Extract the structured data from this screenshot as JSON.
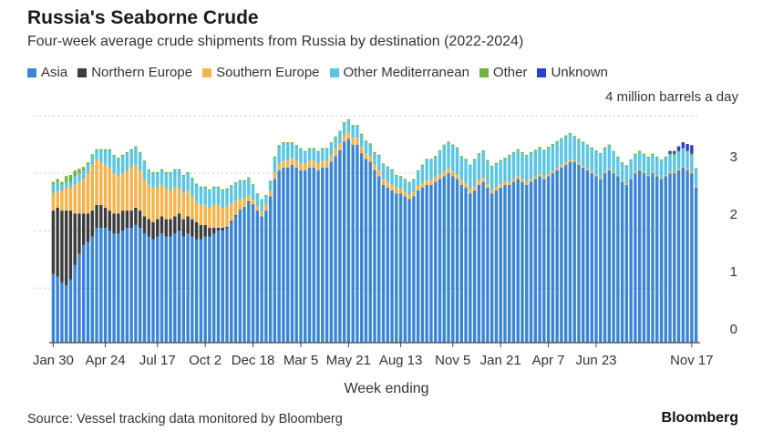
{
  "title": "Russia's Seaborne Crude",
  "subtitle": "Four-week average crude shipments from Russia by destination (2022-2024)",
  "unit_label": "4 million barrels a day",
  "source": "Source: Vessel tracking data monitored by Bloomberg",
  "brand": "Bloomberg",
  "chart_data": {
    "type": "bar",
    "stacked": true,
    "title": "Russia's Seaborne Crude",
    "subtitle": "Four-week average crude shipments from Russia by destination (2022-2024)",
    "xlabel": "Week ending",
    "ylabel": "",
    "unit": "4 million barrels a day",
    "ylim": [
      0,
      4
    ],
    "yticks": [
      0,
      1,
      2,
      3
    ],
    "grid": true,
    "legend_position": "top-left",
    "x_tick_labels": [
      "Jan 30",
      "Apr 24",
      "Jul 17",
      "Oct 2",
      "Dec 18",
      "Mar 5",
      "May 21",
      "Aug 13",
      "Nov 5",
      "Jan 21",
      "Apr 7",
      "Jun 23",
      "Nov 17"
    ],
    "x_tick_positions": [
      0,
      12,
      24,
      35,
      46,
      57,
      68,
      80,
      92,
      103,
      114,
      125,
      147
    ],
    "series": [
      {
        "name": "Asia",
        "color": "#3a85d4",
        "values": [
          1.2,
          1.15,
          1.05,
          1.0,
          1.1,
          1.35,
          1.55,
          1.7,
          1.75,
          1.85,
          2.0,
          2.0,
          2.0,
          1.95,
          1.9,
          1.9,
          1.95,
          2.0,
          2.0,
          2.05,
          2.0,
          1.9,
          1.85,
          1.8,
          1.85,
          1.9,
          1.85,
          1.85,
          1.9,
          1.95,
          1.85,
          1.9,
          1.85,
          1.8,
          1.8,
          1.85,
          1.85,
          1.9,
          1.95,
          1.95,
          2.0,
          2.1,
          2.2,
          2.3,
          2.35,
          2.45,
          2.4,
          2.3,
          2.2,
          2.3,
          2.55,
          2.85,
          3.0,
          3.05,
          3.05,
          3.1,
          3.05,
          3.0,
          3.0,
          3.05,
          3.05,
          3.0,
          3.05,
          3.05,
          3.15,
          3.25,
          3.35,
          3.5,
          3.55,
          3.45,
          3.45,
          3.3,
          3.2,
          3.15,
          3.0,
          2.9,
          2.75,
          2.7,
          2.65,
          2.6,
          2.6,
          2.55,
          2.5,
          2.55,
          2.65,
          2.7,
          2.75,
          2.75,
          2.8,
          2.85,
          2.9,
          2.95,
          2.9,
          2.85,
          2.75,
          2.7,
          2.6,
          2.65,
          2.75,
          2.8,
          2.7,
          2.6,
          2.65,
          2.7,
          2.75,
          2.75,
          2.8,
          2.85,
          2.8,
          2.75,
          2.8,
          2.85,
          2.9,
          2.85,
          2.9,
          2.95,
          3.0,
          3.05,
          3.1,
          3.15,
          3.15,
          3.1,
          3.05,
          3.0,
          2.95,
          2.9,
          2.85,
          2.95,
          3.0,
          2.95,
          2.9,
          2.8,
          2.75,
          2.85,
          2.95,
          3.0,
          2.95,
          2.9,
          2.95,
          2.9,
          2.85,
          2.9,
          2.95,
          2.95,
          3.0,
          3.05,
          3.0,
          2.95,
          2.7
        ]
      },
      {
        "name": "Northern Europe",
        "color": "#3c3c3c",
        "values": [
          1.1,
          1.2,
          1.25,
          1.3,
          1.2,
          0.9,
          0.7,
          0.55,
          0.5,
          0.45,
          0.4,
          0.4,
          0.35,
          0.35,
          0.35,
          0.35,
          0.35,
          0.3,
          0.3,
          0.3,
          0.3,
          0.3,
          0.3,
          0.3,
          0.3,
          0.3,
          0.3,
          0.3,
          0.3,
          0.3,
          0.3,
          0.3,
          0.3,
          0.3,
          0.25,
          0.2,
          0.15,
          0.1,
          0.05,
          0.05,
          0.02,
          0.02,
          0.02,
          0.01,
          0.01,
          0.01,
          0.01,
          0,
          0,
          0,
          0,
          0,
          0,
          0,
          0,
          0,
          0,
          0,
          0,
          0,
          0,
          0,
          0,
          0,
          0,
          0,
          0,
          0,
          0,
          0,
          0,
          0,
          0,
          0,
          0,
          0,
          0,
          0,
          0,
          0,
          0,
          0,
          0,
          0,
          0,
          0,
          0,
          0,
          0,
          0,
          0,
          0,
          0,
          0,
          0,
          0,
          0,
          0,
          0,
          0,
          0,
          0,
          0,
          0,
          0,
          0,
          0,
          0,
          0,
          0,
          0,
          0,
          0,
          0,
          0,
          0,
          0,
          0,
          0,
          0,
          0,
          0,
          0,
          0,
          0,
          0,
          0,
          0,
          0,
          0,
          0,
          0,
          0,
          0,
          0,
          0,
          0,
          0,
          0,
          0,
          0,
          0,
          0,
          0,
          0,
          0,
          0,
          0,
          0
        ]
      },
      {
        "name": "Southern Europe",
        "color": "#f7b24a",
        "values": [
          0.3,
          0.3,
          0.35,
          0.4,
          0.4,
          0.5,
          0.55,
          0.6,
          0.7,
          0.8,
          0.8,
          0.75,
          0.75,
          0.75,
          0.7,
          0.65,
          0.65,
          0.7,
          0.75,
          0.75,
          0.7,
          0.65,
          0.6,
          0.6,
          0.55,
          0.55,
          0.55,
          0.5,
          0.5,
          0.45,
          0.45,
          0.45,
          0.4,
          0.35,
          0.35,
          0.35,
          0.35,
          0.4,
          0.4,
          0.35,
          0.35,
          0.3,
          0.25,
          0.2,
          0.15,
          0.1,
          0.08,
          0.08,
          0.08,
          0.1,
          0.1,
          0.12,
          0.12,
          0.12,
          0.12,
          0.12,
          0.12,
          0.12,
          0.12,
          0.12,
          0.12,
          0.12,
          0.12,
          0.12,
          0.12,
          0.12,
          0.12,
          0.12,
          0.12,
          0.12,
          0.12,
          0.12,
          0.1,
          0.1,
          0.1,
          0.1,
          0.1,
          0.1,
          0.1,
          0.1,
          0.08,
          0.08,
          0.08,
          0.08,
          0.08,
          0.08,
          0.08,
          0.08,
          0.08,
          0.08,
          0.08,
          0.08,
          0.08,
          0.08,
          0.08,
          0.08,
          0.08,
          0.08,
          0.08,
          0.08,
          0.06,
          0.06,
          0.06,
          0.06,
          0.05,
          0.05,
          0.05,
          0.05,
          0.05,
          0.05,
          0.05,
          0.04,
          0.04,
          0.04,
          0.04,
          0.04,
          0.04,
          0.04,
          0.04,
          0.03,
          0.03,
          0.03,
          0.03,
          0.03,
          0.03,
          0.03,
          0.03,
          0.03,
          0.03,
          0.02,
          0.02,
          0.02,
          0.02,
          0.02,
          0.02,
          0.02,
          0.02,
          0.02,
          0.02,
          0.02,
          0.02,
          0.02,
          0.02,
          0.02,
          0.02,
          0.02,
          0.02,
          0.02,
          0.02,
          0.02
        ]
      },
      {
        "name": "Other Mediterranean",
        "color": "#5bc5e6",
        "values": [
          0.15,
          0.15,
          0.1,
          0.1,
          0.1,
          0.15,
          0.15,
          0.15,
          0.15,
          0.15,
          0.15,
          0.2,
          0.25,
          0.3,
          0.3,
          0.3,
          0.3,
          0.3,
          0.3,
          0.3,
          0.3,
          0.3,
          0.25,
          0.25,
          0.25,
          0.25,
          0.25,
          0.3,
          0.3,
          0.3,
          0.3,
          0.3,
          0.3,
          0.3,
          0.3,
          0.3,
          0.3,
          0.3,
          0.3,
          0.3,
          0.3,
          0.3,
          0.3,
          0.3,
          0.3,
          0.3,
          0.25,
          0.2,
          0.2,
          0.15,
          0.15,
          0.25,
          0.3,
          0.3,
          0.3,
          0.25,
          0.25,
          0.25,
          0.2,
          0.2,
          0.2,
          0.2,
          0.2,
          0.2,
          0.2,
          0.2,
          0.2,
          0.2,
          0.2,
          0.2,
          0.2,
          0.2,
          0.2,
          0.2,
          0.2,
          0.25,
          0.25,
          0.25,
          0.25,
          0.2,
          0.2,
          0.2,
          0.2,
          0.2,
          0.25,
          0.3,
          0.35,
          0.35,
          0.35,
          0.4,
          0.45,
          0.45,
          0.45,
          0.45,
          0.4,
          0.4,
          0.4,
          0.45,
          0.45,
          0.45,
          0.4,
          0.4,
          0.4,
          0.4,
          0.4,
          0.45,
          0.45,
          0.45,
          0.45,
          0.45,
          0.45,
          0.45,
          0.45,
          0.45,
          0.45,
          0.45,
          0.45,
          0.45,
          0.45,
          0.45,
          0.4,
          0.4,
          0.4,
          0.4,
          0.4,
          0.4,
          0.4,
          0.4,
          0.4,
          0.35,
          0.3,
          0.3,
          0.3,
          0.3,
          0.3,
          0.3,
          0.3,
          0.3,
          0.3,
          0.3,
          0.3,
          0.3,
          0.3,
          0.3,
          0.3,
          0.3,
          0.3,
          0.3,
          0.3,
          0.3,
          0.3
        ]
      },
      {
        "name": "Other",
        "color": "#6cb33f",
        "values": [
          0.05,
          0.05,
          0.05,
          0.1,
          0.12,
          0.1,
          0.08,
          0.06,
          0.04,
          0.03,
          0.02,
          0.02,
          0.02,
          0.02,
          0.02,
          0.02,
          0.02,
          0.02,
          0.02,
          0.02,
          0.02,
          0.02,
          0.02,
          0.02,
          0.02,
          0.02,
          0.02,
          0.02,
          0.02,
          0.02,
          0.02,
          0.02,
          0.02,
          0.02,
          0.02,
          0.02,
          0.02,
          0.02,
          0.02,
          0.02,
          0.02,
          0.02,
          0.02,
          0.02,
          0.02,
          0.02,
          0.02,
          0.02,
          0.02,
          0.02,
          0.02,
          0.02,
          0.02,
          0.02,
          0.02,
          0.02,
          0.02,
          0.02,
          0.02,
          0.02,
          0.02,
          0.02,
          0.02,
          0.02,
          0.02,
          0.02,
          0.02,
          0.02,
          0.02,
          0.02,
          0.02,
          0.02,
          0.02,
          0.02,
          0.02,
          0.02,
          0.02,
          0.02,
          0.02,
          0.02,
          0.02,
          0.02,
          0.02,
          0.02,
          0.02,
          0.02,
          0.02,
          0.02,
          0.02,
          0.02,
          0.02,
          0.02,
          0.02,
          0.02,
          0.02,
          0.02,
          0.02,
          0.02,
          0.02,
          0.02,
          0.02,
          0.02,
          0.02,
          0.02,
          0.02,
          0.02,
          0.02,
          0.02,
          0.02,
          0.02,
          0.02,
          0.02,
          0.02,
          0.02,
          0.02,
          0.02,
          0.02,
          0.02,
          0.02,
          0.02,
          0.02,
          0.02,
          0.02,
          0.02,
          0.02,
          0.02,
          0.02,
          0.02,
          0.02,
          0.02,
          0.02,
          0.02,
          0.02,
          0.02,
          0.02,
          0.02,
          0.02,
          0.02,
          0.02,
          0.02,
          0.02,
          0.02,
          0.02,
          0.02,
          0.02,
          0.02,
          0.02,
          0.02,
          0.02
        ]
      },
      {
        "name": "Unknown",
        "color": "#2b3fd6",
        "values": [
          0,
          0,
          0,
          0,
          0,
          0,
          0,
          0,
          0,
          0,
          0,
          0,
          0,
          0,
          0,
          0,
          0,
          0,
          0,
          0,
          0,
          0,
          0,
          0,
          0,
          0,
          0,
          0,
          0,
          0,
          0,
          0,
          0,
          0,
          0,
          0,
          0,
          0,
          0,
          0,
          0,
          0,
          0,
          0,
          0,
          0,
          0,
          0,
          0,
          0,
          0,
          0,
          0,
          0,
          0,
          0,
          0,
          0,
          0,
          0,
          0,
          0,
          0,
          0,
          0,
          0,
          0,
          0,
          0,
          0,
          0,
          0,
          0,
          0,
          0,
          0,
          0,
          0,
          0,
          0,
          0,
          0,
          0,
          0,
          0,
          0,
          0,
          0,
          0,
          0,
          0,
          0,
          0,
          0,
          0,
          0,
          0,
          0,
          0,
          0,
          0,
          0,
          0,
          0,
          0,
          0,
          0,
          0,
          0,
          0,
          0,
          0,
          0,
          0,
          0,
          0,
          0,
          0,
          0,
          0,
          0,
          0,
          0,
          0,
          0,
          0,
          0,
          0,
          0,
          0,
          0,
          0,
          0,
          0,
          0,
          0,
          0,
          0,
          0,
          0,
          0,
          0,
          0.05,
          0.05,
          0.08,
          0.1,
          0.12,
          0.15
        ]
      }
    ]
  }
}
